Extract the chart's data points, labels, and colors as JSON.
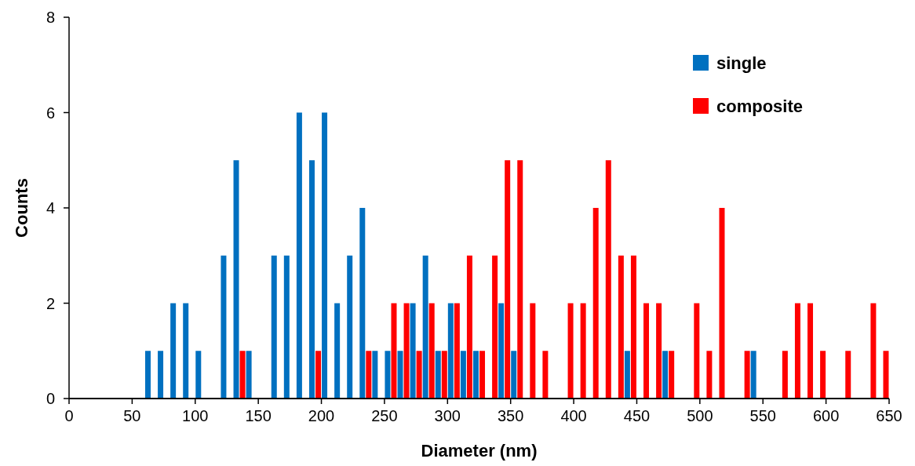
{
  "chart_data": {
    "type": "bar",
    "xlabel": "Diameter (nm)",
    "ylabel": "Counts",
    "xlim": [
      0,
      650
    ],
    "xticks": [
      0,
      50,
      100,
      150,
      200,
      250,
      300,
      350,
      400,
      450,
      500,
      550,
      600,
      650
    ],
    "ylim": [
      0,
      8
    ],
    "yticks": [
      0,
      2,
      4,
      6,
      8
    ],
    "grid": false,
    "legend": "top right",
    "series": [
      {
        "name": "single",
        "color": "#0070c0",
        "x": [
          62.5,
          72.5,
          82.5,
          92.5,
          102.5,
          122.5,
          132.5,
          142.5,
          162.5,
          172.5,
          182.5,
          192.5,
          202.5,
          212.5,
          222.5,
          232.5,
          242.5,
          252.5,
          262.5,
          272.5,
          282.5,
          292.5,
          302.5,
          312.5,
          322.5,
          342.5,
          352.5,
          442.5,
          472.5,
          542.5
        ],
        "values": [
          1,
          1,
          2,
          2,
          1,
          3,
          5,
          1,
          3,
          3,
          6,
          5,
          6,
          2,
          3,
          4,
          1,
          1,
          1,
          2,
          3,
          1,
          2,
          1,
          1,
          2,
          1,
          1,
          1,
          1
        ]
      },
      {
        "name": "composite",
        "color": "#ff0000",
        "x": [
          137.5,
          197.5,
          237.5,
          257.5,
          267.5,
          277.5,
          287.5,
          297.5,
          307.5,
          317.5,
          327.5,
          337.5,
          347.5,
          357.5,
          367.5,
          377.5,
          397.5,
          407.5,
          417.5,
          427.5,
          437.5,
          447.5,
          457.5,
          467.5,
          477.5,
          497.5,
          507.5,
          517.5,
          537.5,
          567.5,
          577.5,
          587.5,
          597.5,
          617.5,
          637.5,
          647.5
        ],
        "values": [
          1,
          1,
          1,
          2,
          2,
          1,
          2,
          1,
          2,
          3,
          1,
          3,
          5,
          5,
          2,
          1,
          2,
          2,
          4,
          5,
          3,
          3,
          2,
          2,
          1,
          2,
          1,
          4,
          1,
          1,
          2,
          2,
          1,
          1,
          2,
          1
        ]
      }
    ]
  }
}
